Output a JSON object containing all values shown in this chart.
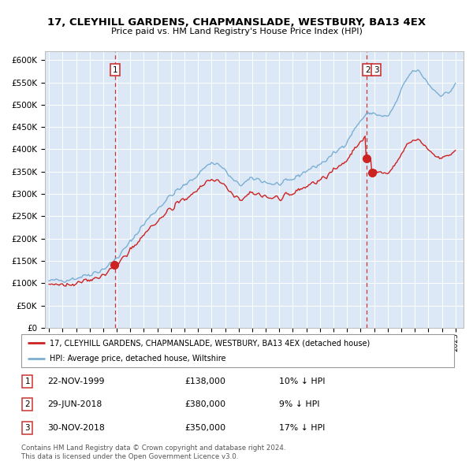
{
  "title": "17, CLEYHILL GARDENS, CHAPMANSLADE, WESTBURY, BA13 4EX",
  "subtitle": "Price paid vs. HM Land Registry's House Price Index (HPI)",
  "legend_line1": "17, CLEYHILL GARDENS, CHAPMANSLADE, WESTBURY, BA13 4EX (detached house)",
  "legend_line2": "HPI: Average price, detached house, Wiltshire",
  "transactions": [
    {
      "num": 1,
      "date": "22-NOV-1999",
      "price": 138000,
      "pct": "10%",
      "dir": "↓"
    },
    {
      "num": 2,
      "date": "29-JUN-2018",
      "price": 380000,
      "pct": "9%",
      "dir": "↓"
    },
    {
      "num": 3,
      "date": "30-NOV-2018",
      "price": 350000,
      "pct": "17%",
      "dir": "↓"
    }
  ],
  "footer1": "Contains HM Land Registry data © Crown copyright and database right 2024.",
  "footer2": "This data is licensed under the Open Government Licence v3.0.",
  "hpi_color": "#7aafd4",
  "property_color": "#cc2222",
  "vline_color": "#cc3333",
  "background_color": "#dce8f5",
  "ylim": [
    0,
    620000
  ],
  "yticks": [
    0,
    50000,
    100000,
    150000,
    200000,
    250000,
    300000,
    350000,
    400000,
    450000,
    500000,
    550000,
    600000
  ]
}
